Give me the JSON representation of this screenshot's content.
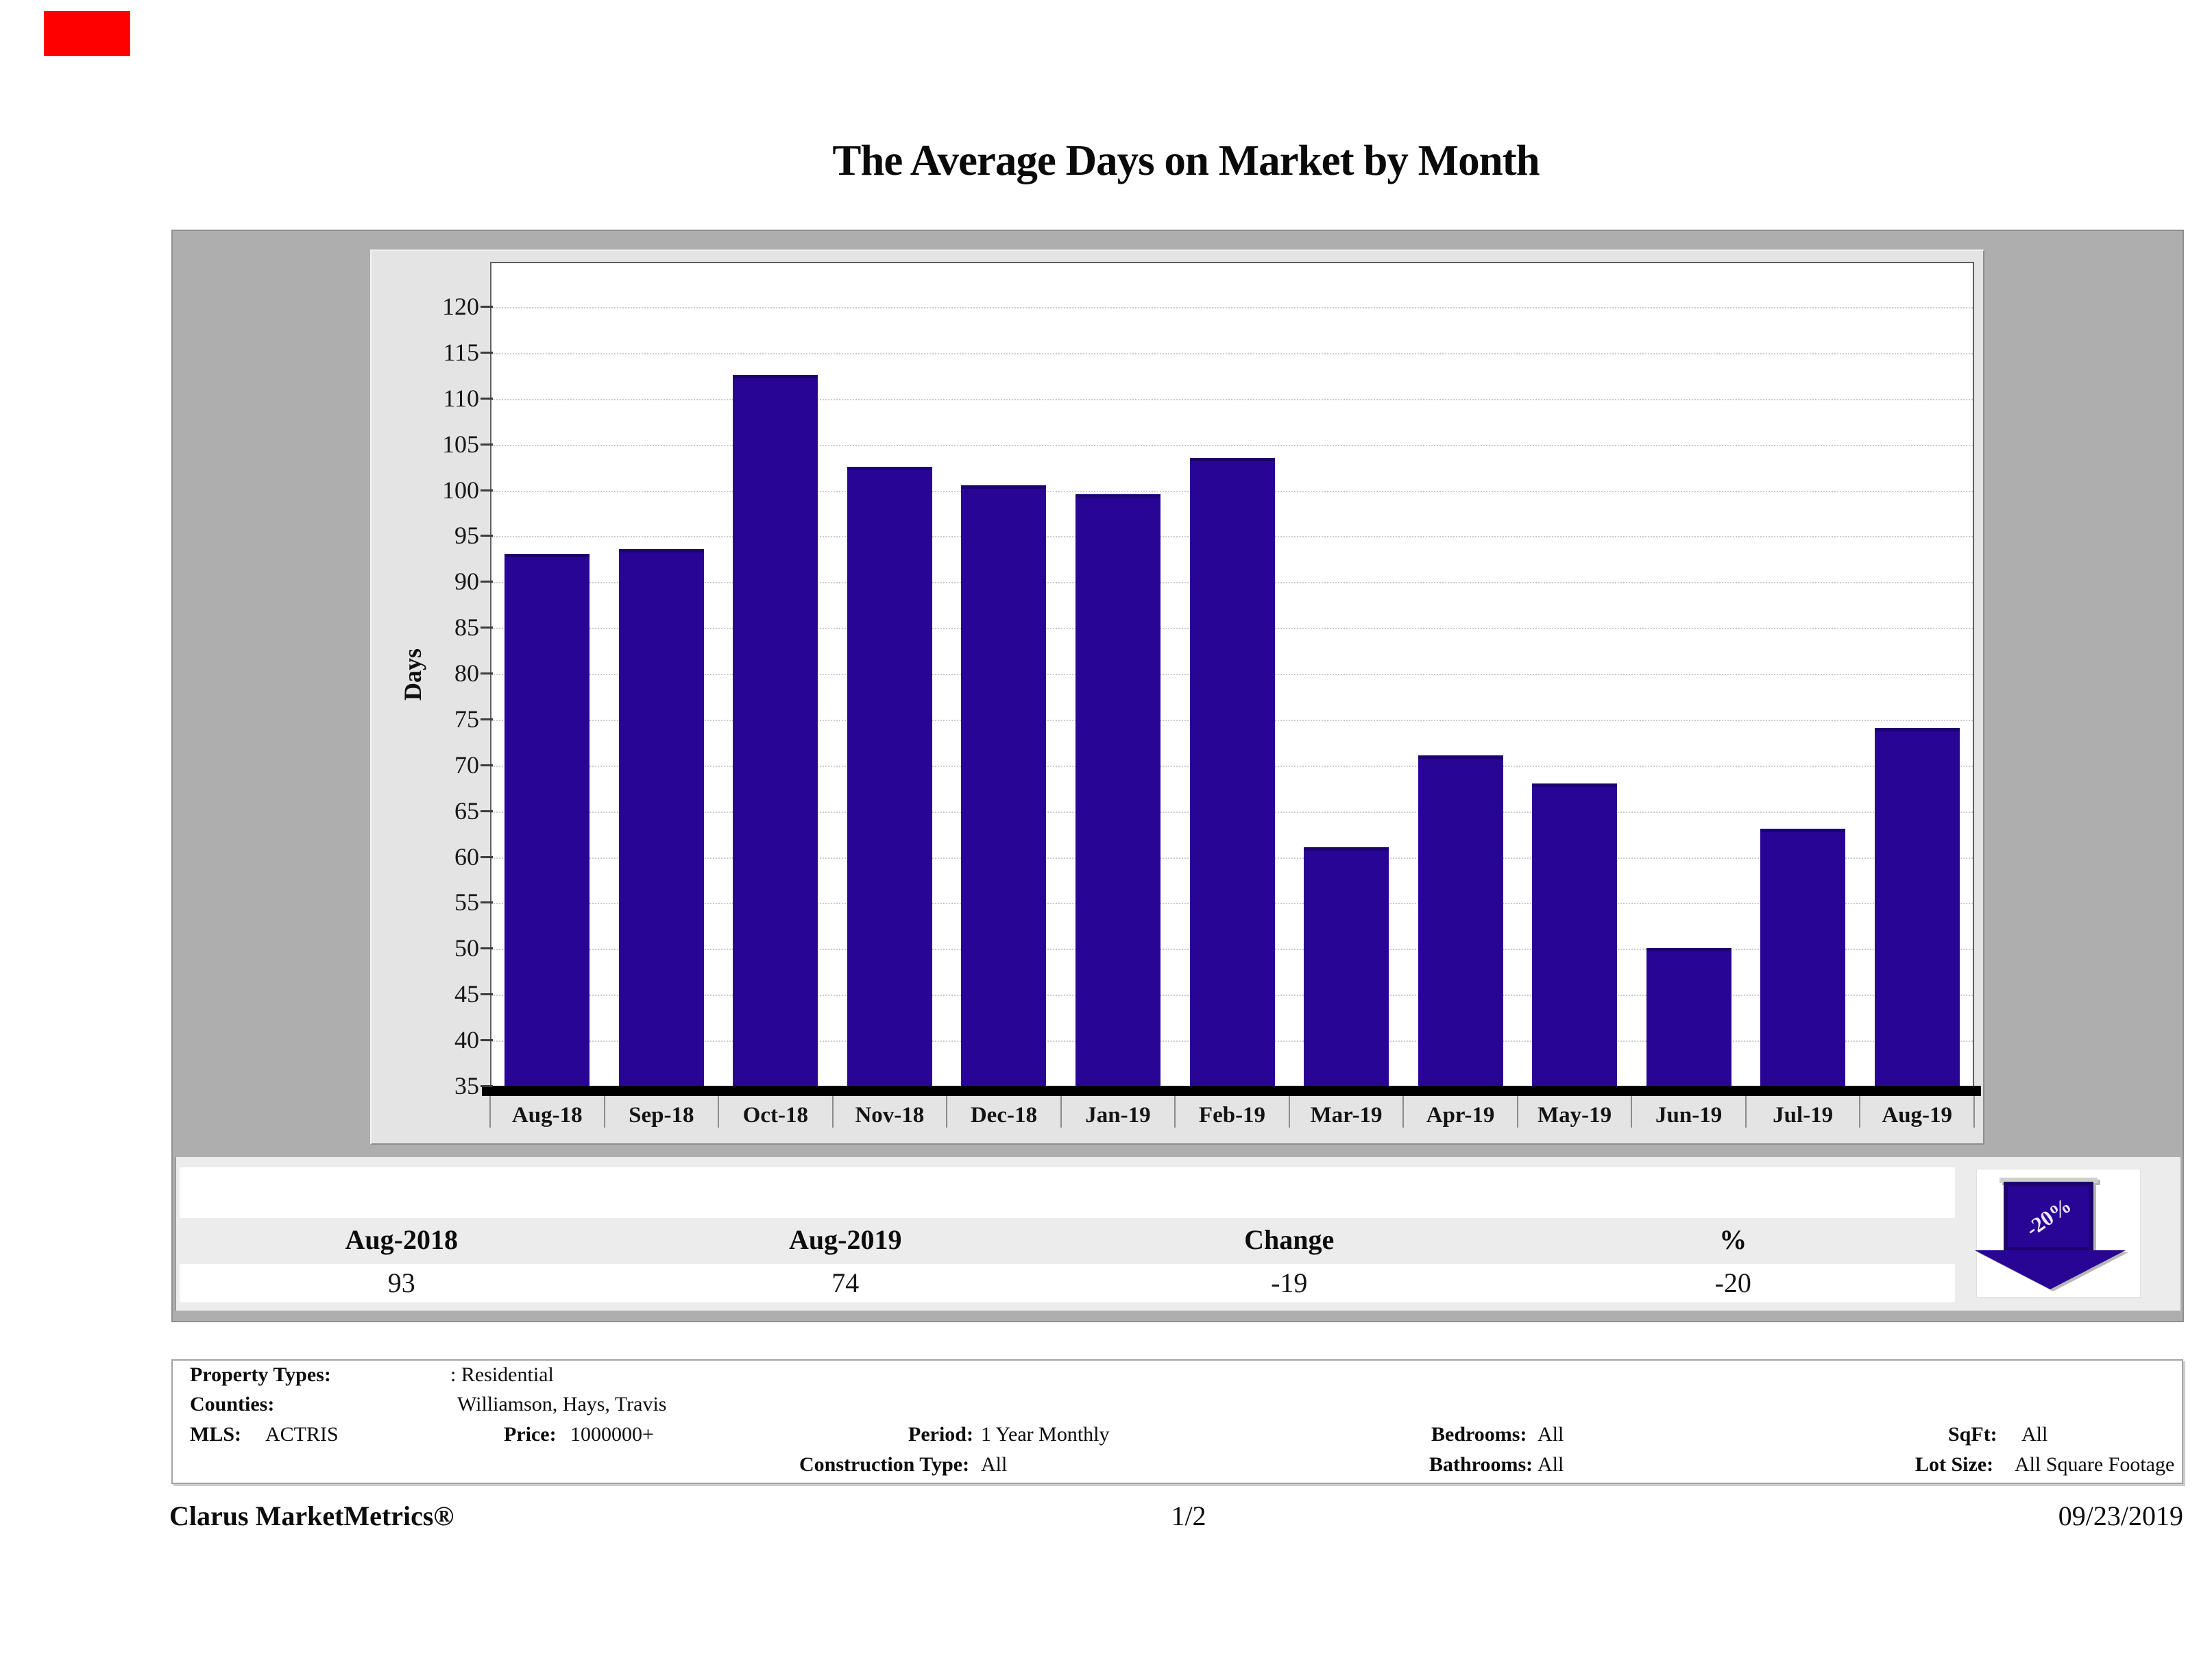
{
  "page": {
    "title": "The Average Days on Market by Month"
  },
  "chart_data": {
    "type": "bar",
    "title": "The Average Days on Market by Month",
    "categories": [
      "Aug-18",
      "Sep-18",
      "Oct-18",
      "Nov-18",
      "Dec-18",
      "Jan-19",
      "Feb-19",
      "Mar-19",
      "Apr-19",
      "May-19",
      "Jun-19",
      "Jul-19",
      "Aug-19"
    ],
    "values": [
      93,
      93.5,
      112.5,
      102.5,
      100.5,
      99.5,
      103.5,
      61,
      71,
      68,
      50,
      63,
      74
    ],
    "xlabel": "",
    "ylabel": "Days",
    "ylim": [
      35,
      120
    ],
    "ytick_step": 5,
    "grid": "horizontal-dotted",
    "legend": "none",
    "bar_color": "#280594"
  },
  "summary_table": {
    "headers": [
      "Aug-2018",
      "Aug-2019",
      "Change",
      "%"
    ],
    "values": [
      "93",
      "74",
      "-19",
      "-20"
    ],
    "arrow": {
      "label": "-20%",
      "direction": "down",
      "color": "#280594"
    }
  },
  "details": {
    "property_types_label": "Property Types:",
    "property_types_value": ": Residential",
    "counties_label": "Counties:",
    "counties_value": "Williamson, Hays, Travis",
    "mls_label": "MLS:",
    "mls_value": "ACTRIS",
    "price_label": "Price:",
    "price_value": "1000000+",
    "period_label": "Period:",
    "period_value": "1 Year Monthly",
    "bedrooms_label": "Bedrooms:",
    "bedrooms_value": "All",
    "sqft_label": "SqFt:",
    "sqft_value": "All",
    "construction_label": "Construction Type:",
    "construction_value": "All",
    "bathrooms_label": "Bathrooms:",
    "bathrooms_value": "All",
    "lotsize_label": "Lot Size:",
    "lotsize_value": "All Square Footage"
  },
  "footer": {
    "brand": "Clarus MarketMetrics®",
    "page_number": "1/2",
    "date": "09/23/2019"
  },
  "colors": {
    "bar": "#280594",
    "container_bg": "#aeaeae",
    "panel_bg": "#e4e4e4",
    "summary_bg": "#ececec",
    "arrow": "#280594",
    "red_mark": "#ff0000"
  }
}
